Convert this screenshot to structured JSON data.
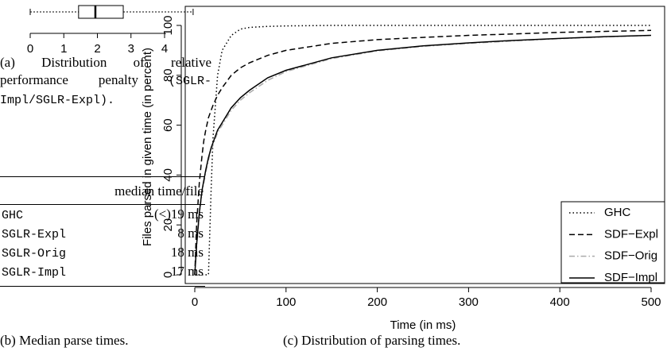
{
  "chart_data": [
    {
      "type": "box",
      "stats": {
        "min": 0,
        "q1": 1.44,
        "median": 1.94,
        "q3": 2.77,
        "max": 4.85
      },
      "xlim": [
        0,
        4
      ],
      "xticks": [
        0,
        1,
        2,
        3,
        4
      ],
      "caption": "(a) Distribution of relative performance penalty",
      "caption_detail": "(SGLR-Impl/SGLR-Expl)."
    },
    {
      "type": "line",
      "xlabel": "Time (in ms)",
      "ylabel": "Files parsed in given time (in percent)",
      "x": [
        0,
        2,
        5,
        8,
        10,
        12,
        15,
        18,
        20,
        25,
        30,
        40,
        50,
        60,
        80,
        100,
        150,
        200,
        250,
        300,
        350,
        400,
        450,
        500
      ],
      "series": [
        {
          "name": "GHC",
          "color": "#000000",
          "dash": "1.5 3",
          "values": [
            0,
            0,
            0,
            0,
            0,
            0,
            0,
            35,
            55,
            80,
            90,
            96,
            98.5,
            99.2,
            99.6,
            99.8,
            100,
            100,
            100,
            100,
            100,
            100,
            100,
            100
          ]
        },
        {
          "name": "SDF−Expl",
          "color": "#000000",
          "dash": "7 4",
          "values": [
            0,
            20,
            37,
            48,
            54,
            58,
            63,
            66,
            68,
            72,
            75,
            80,
            83,
            85,
            88,
            90,
            92.8,
            94.3,
            95.2,
            96,
            96.6,
            97.2,
            97.6,
            98
          ]
        },
        {
          "name": "SDF−Orig",
          "color": "#aaaaaa",
          "dash": "7 3 1.5 3",
          "values": [
            0,
            11,
            24,
            33,
            37,
            41,
            46,
            50,
            52,
            57,
            60,
            66,
            70,
            73,
            78,
            81.5,
            86.7,
            89.8,
            91.6,
            92.8,
            93.8,
            94.7,
            95.4,
            96
          ]
        },
        {
          "name": "SDF−Impl",
          "color": "#000000",
          "dash": "none",
          "values": [
            0,
            12,
            25,
            34,
            38,
            42,
            47,
            51,
            53,
            58,
            61,
            67,
            71,
            74,
            79,
            82,
            87,
            90,
            91.8,
            93,
            94,
            94.8,
            95.5,
            96
          ]
        }
      ],
      "xlim": [
        0,
        500
      ],
      "xticks": [
        0,
        100,
        200,
        300,
        400,
        500
      ],
      "ylim": [
        0,
        100
      ],
      "yticks": [
        0,
        20,
        40,
        60,
        80,
        100
      ],
      "legend": "bottom-right",
      "caption": "(c) Distribution of parsing times."
    }
  ],
  "table": {
    "header": "median time/file",
    "rows": [
      [
        "GHC",
        "(<)19 ms"
      ],
      [
        "SGLR-Expl",
        "8 ms"
      ],
      [
        "SGLR-Orig",
        "18 ms"
      ],
      [
        "SGLR-Impl",
        "17 ms"
      ]
    ],
    "caption": "(b) Median parse times."
  }
}
